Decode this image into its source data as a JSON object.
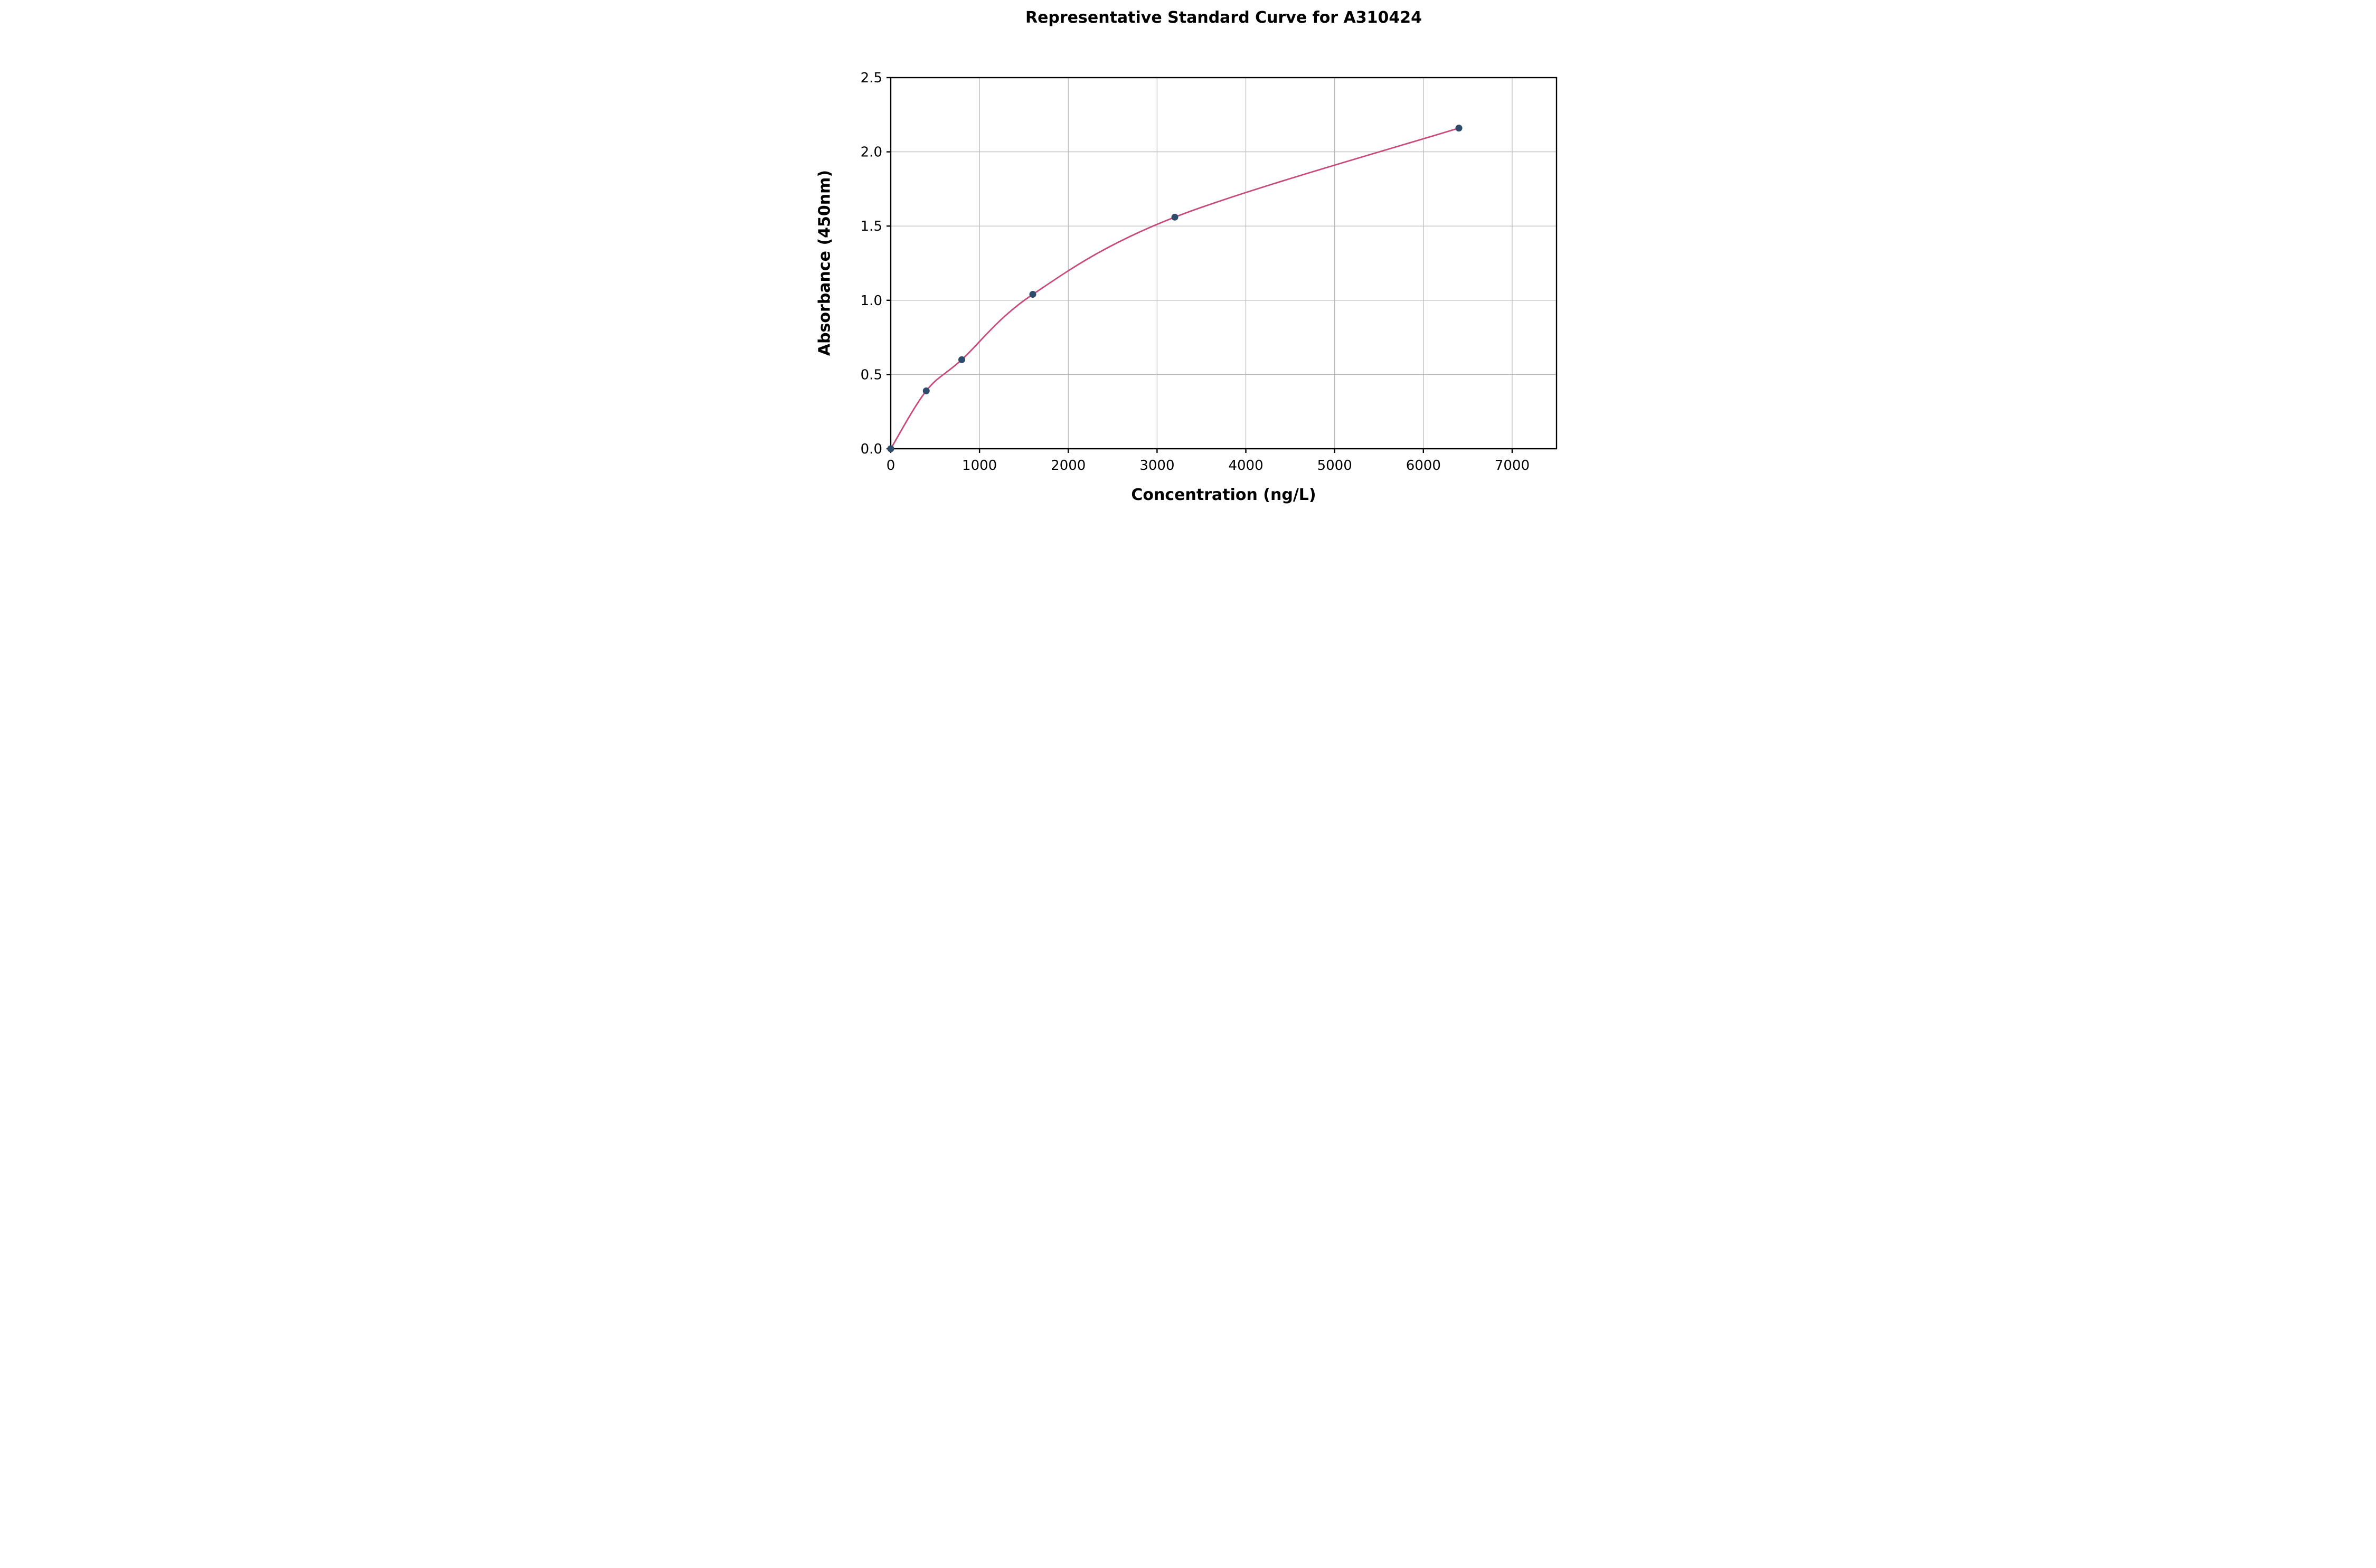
{
  "figure": {
    "background": "#ffffff"
  },
  "chart_data": {
    "type": "scatter",
    "title": "Representative Standard Curve for A310424",
    "xlabel": "Concentration (ng/L)",
    "ylabel": "Absorbance (450nm)",
    "xlim": [
      0,
      7500
    ],
    "ylim": [
      0,
      2.5
    ],
    "x_ticks": [
      0,
      1000,
      2000,
      3000,
      4000,
      5000,
      6000,
      7000
    ],
    "x_tick_labels": [
      "0",
      "1000",
      "2000",
      "3000",
      "4000",
      "5000",
      "6000",
      "7000"
    ],
    "y_ticks": [
      0.0,
      0.5,
      1.0,
      1.5,
      2.0,
      2.5
    ],
    "y_tick_labels": [
      "0.0",
      "0.5",
      "1.0",
      "1.5",
      "2.0",
      "2.5"
    ],
    "grid": true,
    "legend": "none",
    "points": [
      {
        "x": 0,
        "y": 0.0
      },
      {
        "x": 400,
        "y": 0.39
      },
      {
        "x": 800,
        "y": 0.6
      },
      {
        "x": 1600,
        "y": 1.04
      },
      {
        "x": 3200,
        "y": 1.56
      },
      {
        "x": 6400,
        "y": 2.16
      }
    ],
    "fit_curve": "4-parameter logistic through points",
    "colors": {
      "curve": "#c94b7c",
      "point": "#2f4b6b",
      "grid": "#b4b4b4",
      "axes": "#000000",
      "text": "#000000"
    }
  }
}
